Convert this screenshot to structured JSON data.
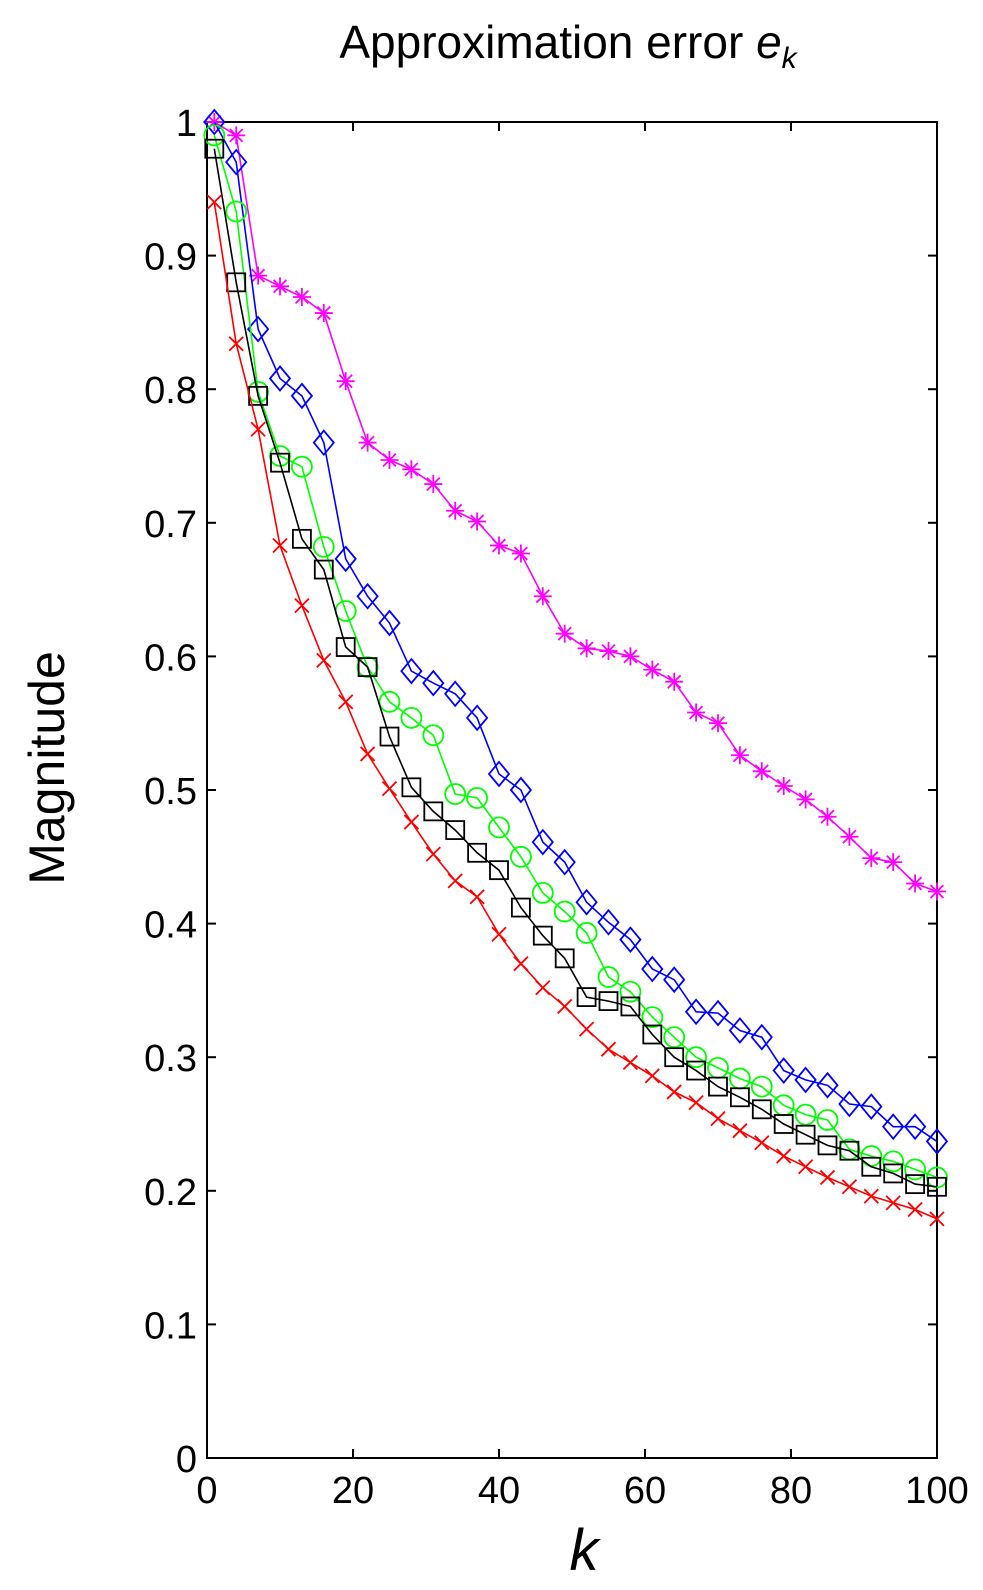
{
  "chart_data": {
    "type": "line",
    "title_main": "Approximation error ",
    "title_var": "e",
    "title_sub": "k",
    "xlabel": "k",
    "ylabel": "Magnitude",
    "xlim": [
      0,
      100
    ],
    "ylim": [
      0,
      1
    ],
    "xticks": [
      0,
      20,
      40,
      60,
      80,
      100
    ],
    "yticks": [
      0,
      0.1,
      0.2,
      0.3,
      0.4,
      0.5,
      0.6,
      0.7,
      0.8,
      0.9,
      1
    ],
    "ytick_labels": [
      "0",
      "0.1",
      "0.2",
      "0.3",
      "0.4",
      "0.5",
      "0.6",
      "0.7",
      "0.8",
      "0.9",
      "1"
    ],
    "grid": false,
    "legend": "none",
    "series": [
      {
        "color": "#ff00ff",
        "marker": "asterisk",
        "x": [
          1,
          4,
          7,
          10,
          13,
          16,
          19,
          22,
          25,
          28,
          31,
          34,
          37,
          40,
          43,
          46,
          49,
          52,
          55,
          58,
          61,
          64,
          67,
          70,
          73,
          76,
          79,
          82,
          85,
          88,
          91,
          94,
          97,
          100
        ],
        "y": [
          1.0,
          0.99,
          0.885,
          0.877,
          0.869,
          0.857,
          0.806,
          0.76,
          0.747,
          0.74,
          0.729,
          0.709,
          0.701,
          0.683,
          0.677,
          0.645,
          0.617,
          0.606,
          0.604,
          0.6,
          0.59,
          0.581,
          0.558,
          0.55,
          0.526,
          0.514,
          0.503,
          0.493,
          0.48,
          0.465,
          0.449,
          0.446,
          0.43,
          0.424
        ]
      },
      {
        "color": "#0000ff",
        "marker": "diamond",
        "x": [
          1,
          4,
          7,
          10,
          13,
          16,
          19,
          22,
          25,
          28,
          31,
          34,
          37,
          40,
          43,
          46,
          49,
          52,
          55,
          58,
          61,
          64,
          67,
          70,
          73,
          76,
          79,
          82,
          85,
          88,
          91,
          94,
          97,
          100
        ],
        "y": [
          1.0,
          0.97,
          0.845,
          0.808,
          0.795,
          0.76,
          0.673,
          0.645,
          0.625,
          0.589,
          0.58,
          0.572,
          0.554,
          0.512,
          0.5,
          0.461,
          0.446,
          0.416,
          0.401,
          0.388,
          0.366,
          0.358,
          0.334,
          0.333,
          0.32,
          0.315,
          0.29,
          0.283,
          0.279,
          0.265,
          0.263,
          0.248,
          0.248,
          0.237
        ]
      },
      {
        "color": "#00ff00",
        "marker": "circle",
        "x": [
          1,
          4,
          7,
          10,
          13,
          16,
          19,
          22,
          25,
          28,
          31,
          34,
          37,
          40,
          43,
          46,
          49,
          52,
          55,
          58,
          61,
          64,
          67,
          70,
          73,
          76,
          79,
          82,
          85,
          88,
          91,
          94,
          97,
          100
        ],
        "y": [
          0.99,
          0.933,
          0.798,
          0.75,
          0.742,
          0.682,
          0.634,
          0.592,
          0.566,
          0.554,
          0.541,
          0.497,
          0.494,
          0.472,
          0.45,
          0.423,
          0.409,
          0.393,
          0.36,
          0.349,
          0.33,
          0.315,
          0.3,
          0.292,
          0.284,
          0.278,
          0.264,
          0.257,
          0.253,
          0.231,
          0.226,
          0.222,
          0.216,
          0.21
        ]
      },
      {
        "color": "#000000",
        "marker": "square",
        "x": [
          1,
          4,
          7,
          10,
          13,
          16,
          19,
          22,
          25,
          28,
          31,
          34,
          37,
          40,
          43,
          46,
          49,
          52,
          55,
          58,
          61,
          64,
          67,
          70,
          73,
          76,
          79,
          82,
          85,
          88,
          91,
          94,
          97,
          100
        ],
        "y": [
          0.98,
          0.88,
          0.795,
          0.745,
          0.688,
          0.665,
          0.607,
          0.592,
          0.54,
          0.502,
          0.484,
          0.47,
          0.453,
          0.44,
          0.412,
          0.391,
          0.374,
          0.345,
          0.342,
          0.338,
          0.317,
          0.3,
          0.29,
          0.278,
          0.27,
          0.261,
          0.25,
          0.242,
          0.234,
          0.23,
          0.218,
          0.213,
          0.205,
          0.203
        ]
      },
      {
        "color": "#ff0000",
        "marker": "x",
        "x": [
          1,
          4,
          7,
          10,
          13,
          16,
          19,
          22,
          25,
          28,
          31,
          34,
          37,
          40,
          43,
          46,
          49,
          52,
          55,
          58,
          61,
          64,
          67,
          70,
          73,
          76,
          79,
          82,
          85,
          88,
          91,
          94,
          97,
          100
        ],
        "y": [
          0.94,
          0.834,
          0.77,
          0.683,
          0.638,
          0.597,
          0.566,
          0.527,
          0.501,
          0.476,
          0.452,
          0.432,
          0.42,
          0.392,
          0.37,
          0.352,
          0.338,
          0.321,
          0.306,
          0.296,
          0.286,
          0.274,
          0.266,
          0.254,
          0.245,
          0.236,
          0.226,
          0.218,
          0.21,
          0.203,
          0.196,
          0.191,
          0.186,
          0.179
        ]
      }
    ]
  }
}
